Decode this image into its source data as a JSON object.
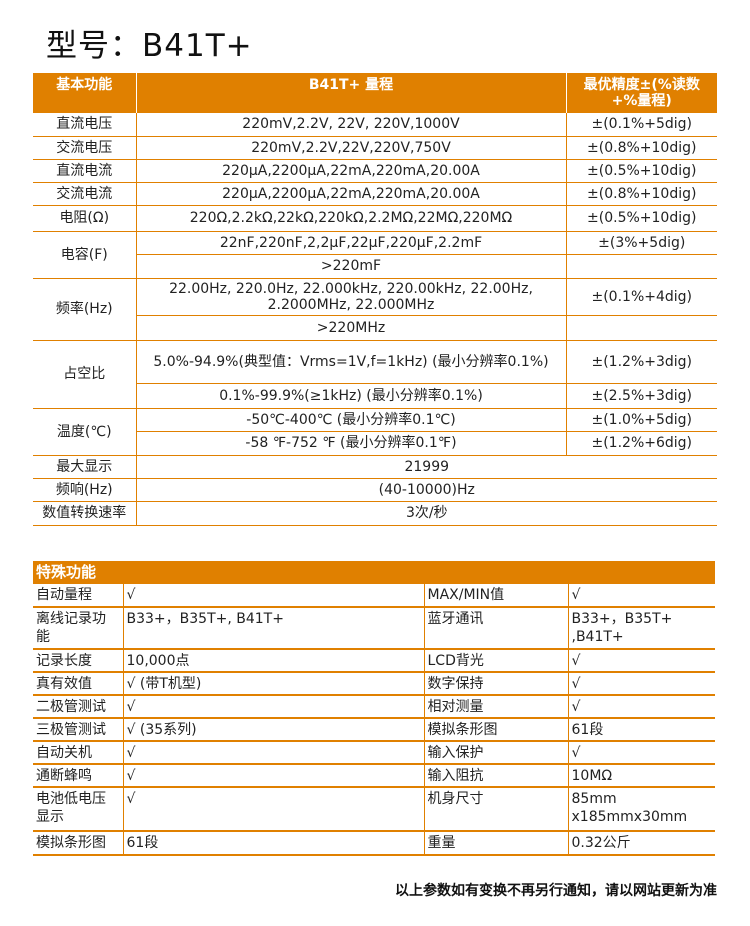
{
  "title": "型号：B41T+",
  "basic": {
    "headers": [
      "基本功能",
      "B41T+ 量程",
      "最优精度±(%读数+%量程)"
    ],
    "rows": [
      {
        "func": "直流电压",
        "range": "220mV,2.2V, 22V, 220V,1000V",
        "acc": "±(0.1%+5dig)"
      },
      {
        "func": "交流电压",
        "range": "220mV,2.2V,22V,220V,750V",
        "acc": "±(0.8%+10dig)"
      },
      {
        "func": "直流电流",
        "range": "220μA,2200μA,22mA,220mA,20.00A",
        "acc": "±(0.5%+10dig)"
      },
      {
        "func": "交流电流",
        "range": "220μA,2200μA,22mA,220mA,20.00A",
        "acc": "±(0.8%+10dig)"
      },
      {
        "func": "电阻(Ω)",
        "range": "220Ω,2.2kΩ,22kΩ,220kΩ,2.2MΩ,22MΩ,220MΩ",
        "acc": "±(0.5%+10dig)"
      }
    ],
    "capacitance": {
      "func": "电容(F)",
      "range1": "22nF,220nF,2,2μF,22μF,220μF,2.2mF",
      "acc1": "±(3%+5dig)",
      "range2": ">220mF",
      "acc2": ""
    },
    "frequency": {
      "func": "频率(Hz)",
      "range1": "22.00Hz, 220.0Hz, 22.000kHz, 220.00kHz, 22.00Hz, 2.2000MHz, 22.000MHz",
      "acc1": "±(0.1%+4dig)",
      "range2": ">220MHz",
      "acc2": ""
    },
    "duty": {
      "func": "占空比",
      "range1": "5.0%-94.9%(典型值：Vrms=1V,f=1kHz) (最小分辨率0.1%)",
      "acc1": "±(1.2%+3dig)",
      "range2": "0.1%-99.9%(≥1kHz) (最小分辨率0.1%)",
      "acc2": "±(2.5%+3dig)"
    },
    "temperature": {
      "func": "温度(℃)",
      "range1": "-50℃-400℃ (最小分辨率0.1℃)",
      "acc1": "±(1.0%+5dig)",
      "range2": "-58 ℉-752 ℉ (最小分辨率0.1℉)",
      "acc2": "±(1.2%+6dig)"
    },
    "spans": [
      {
        "func": "最大显示",
        "value": "21999"
      },
      {
        "func": "频响(Hz)",
        "value": "(40-10000)Hz"
      },
      {
        "func": "数值转换速率",
        "value": "3次/秒"
      }
    ]
  },
  "special": {
    "header": "特殊功能",
    "rows": [
      [
        "自动量程",
        "√",
        "MAX/MIN值",
        "√"
      ],
      [
        "离线记录功能",
        "B33+，B35T+, B41T+",
        "蓝牙通讯",
        "B33+，B35T+ ,B41T+"
      ],
      [
        "记录长度",
        "10,000点",
        "LCD背光",
        "√"
      ],
      [
        "真有效值",
        "√ (带T机型)",
        "数字保持",
        "√"
      ],
      [
        "二极管测试",
        "√",
        "相对测量",
        "√"
      ],
      [
        "三极管测试",
        "√ (35系列)",
        "模拟条形图",
        "61段"
      ],
      [
        "自动关机",
        "√",
        "输入保护",
        "√"
      ],
      [
        "通断蜂鸣",
        "√",
        "输入阻抗",
        "10MΩ"
      ],
      [
        "电池低电压显示",
        "√",
        "机身尺寸",
        "85mm x185mmx30mm"
      ],
      [
        "模拟条形图",
        "61段",
        "重量",
        "0.32公斤"
      ]
    ]
  },
  "footer": "以上参数如有变换不再另行通知，请以网站更新为准",
  "colors": {
    "accent": "#e08000"
  }
}
